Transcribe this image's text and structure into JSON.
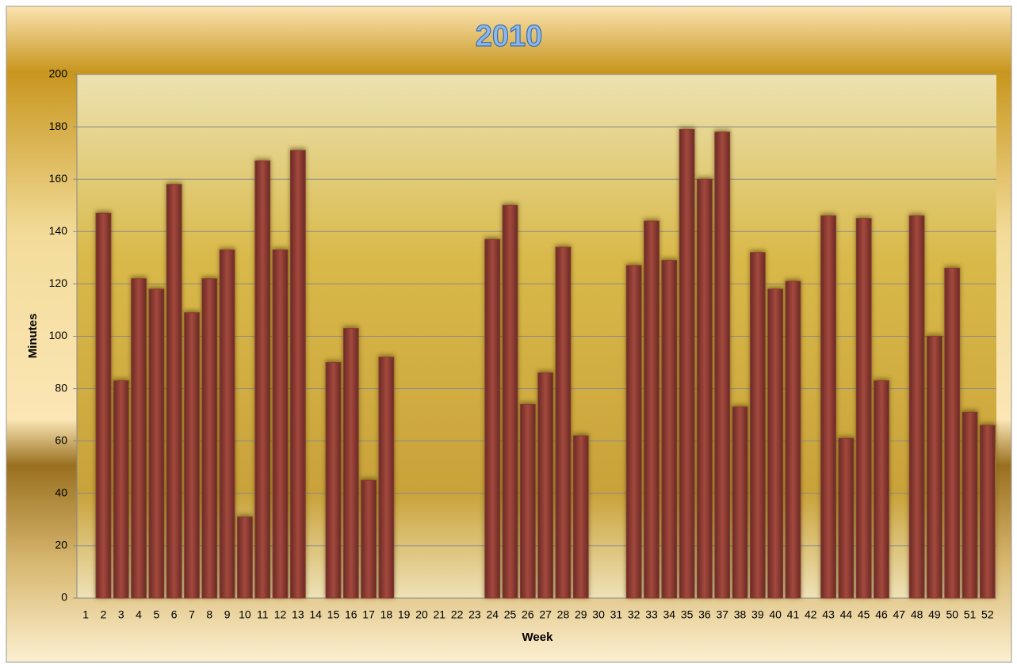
{
  "chart_data": {
    "type": "bar",
    "title": "2010",
    "x_label": "Week",
    "y_label": "Minutes",
    "categories": [
      "1",
      "2",
      "3",
      "4",
      "5",
      "6",
      "7",
      "8",
      "9",
      "10",
      "11",
      "12",
      "13",
      "14",
      "15",
      "16",
      "17",
      "18",
      "19",
      "20",
      "21",
      "22",
      "23",
      "24",
      "25",
      "26",
      "27",
      "28",
      "29",
      "30",
      "31",
      "32",
      "33",
      "34",
      "35",
      "36",
      "37",
      "38",
      "39",
      "40",
      "41",
      "42",
      "43",
      "44",
      "45",
      "46",
      "47",
      "48",
      "49",
      "50",
      "51",
      "52"
    ],
    "values": [
      0,
      147,
      83,
      122,
      118,
      158,
      109,
      122,
      133,
      31,
      167,
      133,
      171,
      0,
      90,
      103,
      45,
      92,
      0,
      0,
      0,
      0,
      0,
      137,
      150,
      74,
      86,
      134,
      62,
      0,
      0,
      127,
      144,
      129,
      179,
      160,
      178,
      73,
      132,
      118,
      121,
      0,
      146,
      61,
      145,
      83,
      0,
      146,
      100,
      126,
      71,
      66
    ],
    "color": "#8a3a32",
    "ylim": [
      0,
      200
    ],
    "yticks": [
      0,
      20,
      40,
      60,
      80,
      100,
      120,
      140,
      160,
      180,
      200
    ],
    "grid": true
  }
}
